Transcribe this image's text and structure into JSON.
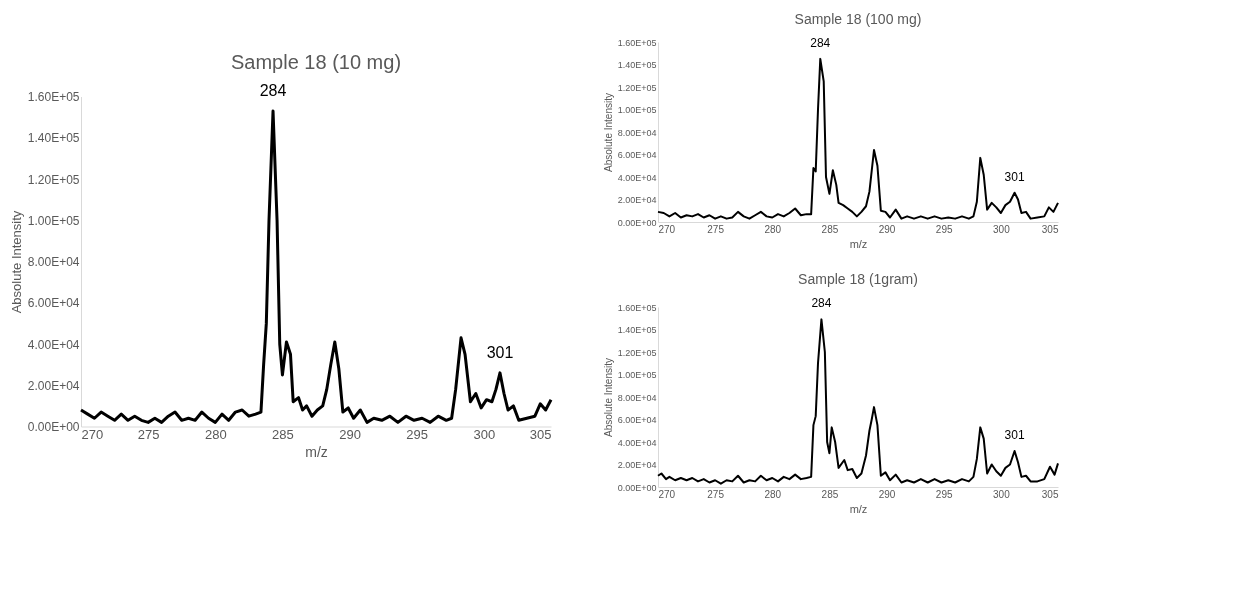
{
  "chart_data": [
    {
      "type": "line",
      "title": "Sample 18 (10 mg)",
      "xlabel": "m/z",
      "ylabel": "Absolute Intensity",
      "xlim": [
        270,
        305
      ],
      "xticks": [
        270,
        275,
        280,
        285,
        290,
        295,
        300,
        305
      ],
      "ylim": [
        0,
        160000
      ],
      "yticks": [
        {
          "value": 0,
          "label": "0.00E+00"
        },
        {
          "value": 20000,
          "label": "2.00E+04"
        },
        {
          "value": 40000,
          "label": "4.00E+04"
        },
        {
          "value": 60000,
          "label": "6.00E+04"
        },
        {
          "value": 80000,
          "label": "8.00E+04"
        },
        {
          "value": 100000,
          "label": "1.00E+05"
        },
        {
          "value": 120000,
          "label": "1.20E+05"
        },
        {
          "value": 140000,
          "label": "1.40E+05"
        },
        {
          "value": 160000,
          "label": "1.60E+05"
        }
      ],
      "grid": false,
      "marker": "none",
      "line_style": "solid",
      "annotations": [
        {
          "text": "284",
          "x": 284.3,
          "y": 153000
        },
        {
          "text": "301",
          "x": 301.2,
          "y": 26000
        }
      ],
      "series": [
        {
          "color": "#000000",
          "x": [
            270,
            270.5,
            271,
            271.5,
            272,
            272.5,
            273,
            273.5,
            274,
            274.5,
            275,
            275.5,
            276,
            276.5,
            277,
            277.5,
            278,
            278.5,
            279,
            279.5,
            280,
            280.5,
            281,
            281.5,
            282,
            282.5,
            283,
            283.4,
            283.6,
            283.8,
            284.0,
            284.3,
            284.6,
            284.8,
            285.0,
            285.3,
            285.6,
            285.8,
            286.2,
            286.5,
            286.8,
            287.2,
            287.6,
            288,
            288.3,
            288.6,
            288.9,
            289.2,
            289.5,
            289.9,
            290.3,
            290.8,
            291.3,
            291.8,
            292.4,
            293,
            293.6,
            294.2,
            294.8,
            295.4,
            296,
            296.6,
            297.2,
            297.6,
            297.9,
            298.3,
            298.6,
            299,
            299.4,
            299.8,
            300.2,
            300.6,
            300.9,
            301.2,
            301.5,
            301.8,
            302.2,
            302.6,
            303.2,
            303.8,
            304.2,
            304.6,
            305
          ],
          "values": [
            8000,
            6000,
            4000,
            7000,
            5000,
            3000,
            6000,
            3000,
            5000,
            3000,
            2000,
            4000,
            2000,
            5000,
            7000,
            3000,
            4000,
            3000,
            7000,
            4000,
            2000,
            6000,
            3000,
            7000,
            8000,
            5000,
            6000,
            7000,
            30000,
            50000,
            100000,
            153000,
            100000,
            40000,
            25000,
            41000,
            35000,
            12000,
            14000,
            8000,
            10000,
            5000,
            8000,
            10000,
            18000,
            30000,
            41000,
            28000,
            7000,
            9000,
            4000,
            8000,
            2000,
            4000,
            3000,
            5000,
            2000,
            5000,
            3000,
            4000,
            2000,
            5000,
            3000,
            4000,
            18000,
            43000,
            35000,
            12000,
            16000,
            9000,
            13000,
            12000,
            18000,
            26000,
            16000,
            8000,
            10000,
            3000,
            4000,
            5000,
            11000,
            8000,
            13000
          ]
        }
      ]
    },
    {
      "type": "line",
      "title": "Sample 18 (100 mg)",
      "xlabel": "m/z",
      "ylabel": "Absolute Intensity",
      "xlim": [
        270,
        305
      ],
      "xticks": [
        270,
        275,
        280,
        285,
        290,
        295,
        300,
        305
      ],
      "ylim": [
        0,
        160000
      ],
      "yticks": [
        {
          "value": 0,
          "label": "0.00E+00"
        },
        {
          "value": 20000,
          "label": "2.00E+04"
        },
        {
          "value": 40000,
          "label": "4.00E+04"
        },
        {
          "value": 60000,
          "label": "6.00E+04"
        },
        {
          "value": 80000,
          "label": "8.00E+04"
        },
        {
          "value": 100000,
          "label": "1.00E+05"
        },
        {
          "value": 120000,
          "label": "1.20E+05"
        },
        {
          "value": 140000,
          "label": "1.40E+05"
        },
        {
          "value": 160000,
          "label": "1.60E+05"
        }
      ],
      "grid": false,
      "marker": "none",
      "line_style": "solid",
      "annotations": [
        {
          "text": "284",
          "x": 284.2,
          "y": 145000
        },
        {
          "text": "301",
          "x": 301.2,
          "y": 26000
        }
      ],
      "series": [
        {
          "color": "#000000",
          "x": [
            270,
            270.5,
            271,
            271.5,
            272,
            272.5,
            273,
            273.5,
            274,
            274.5,
            275,
            275.5,
            276,
            276.5,
            277,
            277.5,
            278,
            278.5,
            279,
            279.5,
            280,
            280.5,
            281,
            281.5,
            282,
            282.5,
            283,
            283.4,
            283.6,
            283.8,
            284.0,
            284.2,
            284.5,
            284.7,
            285.0,
            285.3,
            285.6,
            285.8,
            286.2,
            286.6,
            287,
            287.4,
            287.8,
            288.2,
            288.5,
            288.9,
            289.2,
            289.5,
            289.9,
            290.3,
            290.8,
            291.3,
            291.8,
            292.4,
            293,
            293.6,
            294.2,
            294.8,
            295.4,
            296,
            296.6,
            297.2,
            297.6,
            297.9,
            298.2,
            298.5,
            298.8,
            299.2,
            299.6,
            300,
            300.4,
            300.8,
            301.2,
            301.5,
            301.8,
            302.2,
            302.6,
            303.2,
            303.8,
            304.2,
            304.6,
            305
          ],
          "values": [
            9000,
            8000,
            5000,
            8000,
            4000,
            6000,
            5000,
            7000,
            4000,
            6000,
            3000,
            5000,
            3000,
            4000,
            9000,
            5000,
            3000,
            6000,
            9000,
            5000,
            4000,
            7000,
            5000,
            8000,
            12000,
            6000,
            7000,
            7000,
            48000,
            45000,
            100000,
            145000,
            125000,
            40000,
            25000,
            46000,
            33000,
            17000,
            15000,
            12000,
            9000,
            5000,
            9000,
            14000,
            27000,
            64000,
            50000,
            10000,
            9000,
            4000,
            11000,
            3000,
            5000,
            3000,
            5000,
            3000,
            5000,
            3000,
            4000,
            3000,
            5000,
            3000,
            5000,
            18000,
            57000,
            42000,
            11000,
            17000,
            13000,
            8000,
            15000,
            18000,
            26000,
            20000,
            8000,
            9000,
            3000,
            4000,
            5000,
            13000,
            9000,
            17000
          ]
        }
      ]
    },
    {
      "type": "line",
      "title": "Sample 18 (1gram)",
      "xlabel": "m/z",
      "ylabel": "Absolute Intensity",
      "xlim": [
        270,
        305
      ],
      "xticks": [
        270,
        275,
        280,
        285,
        290,
        295,
        300,
        305
      ],
      "ylim": [
        0,
        160000
      ],
      "yticks": [
        {
          "value": 0,
          "label": "0.00E+00"
        },
        {
          "value": 20000,
          "label": "2.00E+04"
        },
        {
          "value": 40000,
          "label": "4.00E+04"
        },
        {
          "value": 60000,
          "label": "6.00E+04"
        },
        {
          "value": 80000,
          "label": "8.00E+04"
        },
        {
          "value": 100000,
          "label": "1.00E+05"
        },
        {
          "value": 120000,
          "label": "1.20E+05"
        },
        {
          "value": 140000,
          "label": "1.40E+05"
        },
        {
          "value": 160000,
          "label": "1.60E+05"
        }
      ],
      "grid": false,
      "marker": "none",
      "line_style": "solid",
      "annotations": [
        {
          "text": "284",
          "x": 284.3,
          "y": 149000
        },
        {
          "text": "301",
          "x": 301.2,
          "y": 32000
        }
      ],
      "series": [
        {
          "color": "#000000",
          "x": [
            270,
            270.3,
            270.7,
            271,
            271.5,
            272,
            272.5,
            273,
            273.5,
            274,
            274.5,
            275,
            275.5,
            276,
            276.5,
            277,
            277.5,
            278,
            278.5,
            279,
            279.5,
            280,
            280.5,
            281,
            281.5,
            282,
            282.5,
            283,
            283.4,
            283.6,
            283.8,
            284.0,
            284.3,
            284.6,
            284.8,
            285.0,
            285.2,
            285.5,
            285.8,
            286.3,
            286.6,
            287,
            287.4,
            287.8,
            288.2,
            288.5,
            288.7,
            288.9,
            289.2,
            289.5,
            289.9,
            290.3,
            290.8,
            291.3,
            291.8,
            292.4,
            293,
            293.6,
            294.2,
            294.8,
            295.4,
            296,
            296.6,
            297.2,
            297.6,
            297.9,
            298.2,
            298.5,
            298.8,
            299.2,
            299.6,
            300,
            300.4,
            300.8,
            301.2,
            301.5,
            301.8,
            302.2,
            302.6,
            303.2,
            303.8,
            304.3,
            304.7,
            305
          ],
          "values": [
            10000,
            12000,
            7000,
            9000,
            6000,
            8000,
            6000,
            8000,
            5000,
            7000,
            4000,
            6000,
            3000,
            6000,
            5000,
            10000,
            4000,
            6000,
            5000,
            10000,
            6000,
            8000,
            5000,
            9000,
            7000,
            11000,
            7000,
            8000,
            9000,
            55000,
            63000,
            110000,
            149000,
            120000,
            40000,
            30000,
            53000,
            40000,
            17000,
            24000,
            15000,
            16000,
            8000,
            12000,
            28000,
            50000,
            60000,
            71000,
            55000,
            10000,
            13000,
            6000,
            11000,
            4000,
            6000,
            4000,
            7000,
            4000,
            7000,
            4000,
            6000,
            4000,
            7000,
            5000,
            9000,
            25000,
            53000,
            43000,
            12000,
            20000,
            14000,
            10000,
            17000,
            20000,
            32000,
            22000,
            9000,
            10000,
            5000,
            5000,
            7000,
            18000,
            11000,
            21000
          ]
        }
      ]
    }
  ]
}
